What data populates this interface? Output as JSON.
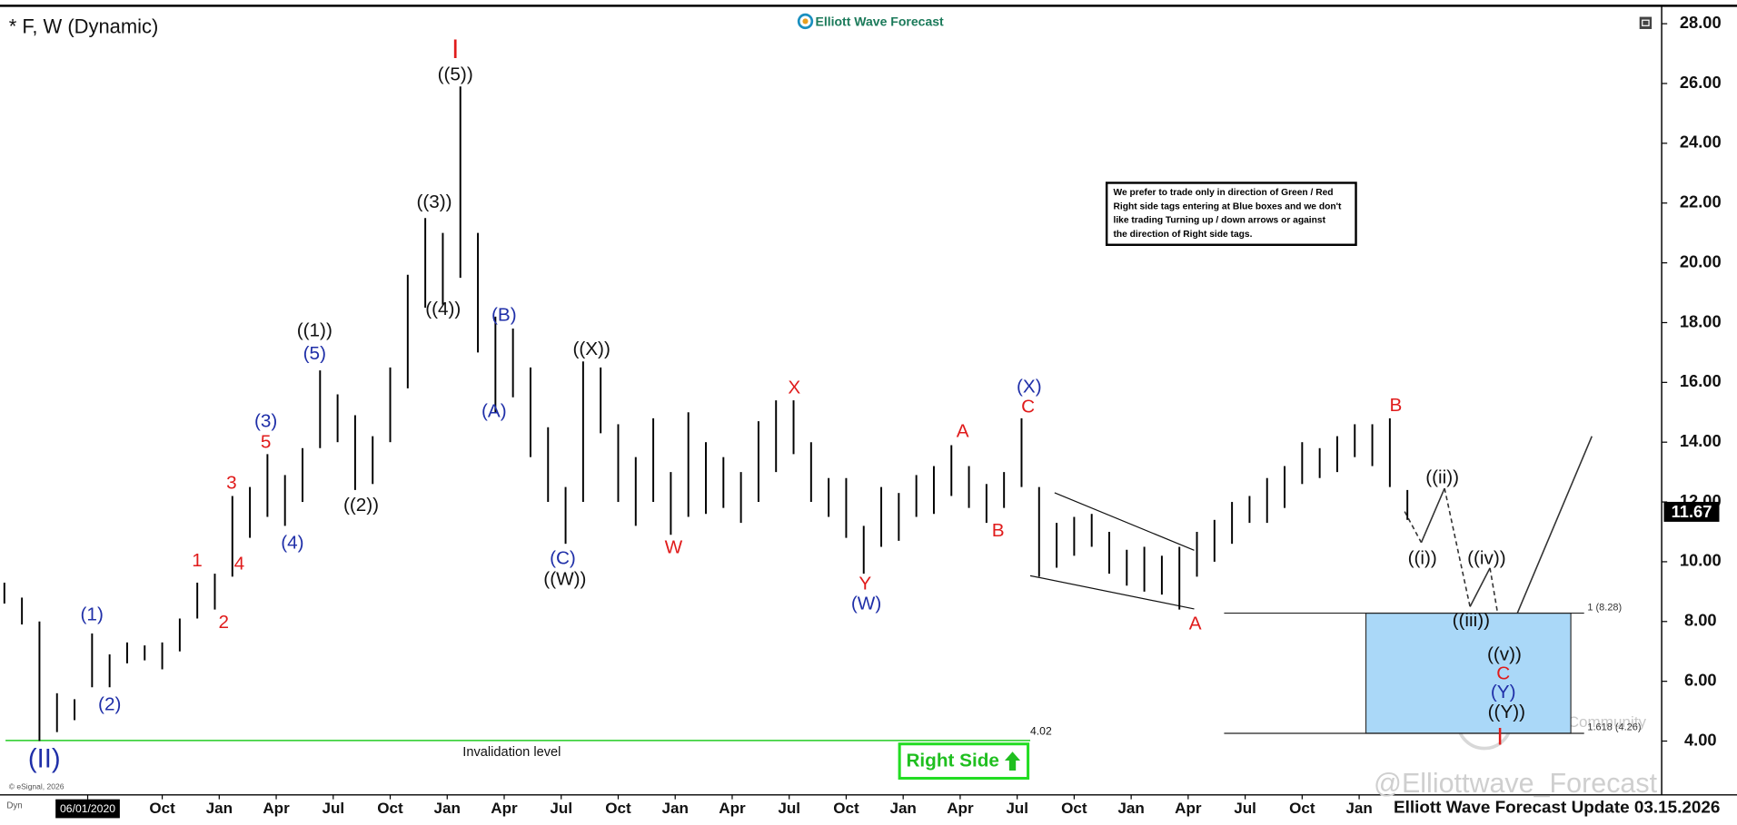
{
  "chart_data": {
    "type": "ohlc",
    "title": "* F, W (Dynamic)",
    "color": "#000000",
    "x": [
      0,
      4,
      8,
      12,
      16,
      20,
      24,
      28,
      32,
      36,
      40,
      44,
      48,
      52,
      56,
      60,
      64,
      68,
      72,
      76,
      80,
      84,
      88,
      92,
      96,
      100,
      104,
      108,
      112,
      116,
      120,
      124,
      128,
      132,
      136,
      140,
      144,
      148,
      152,
      156,
      160,
      164,
      168,
      172,
      176,
      180,
      184,
      188,
      192,
      196,
      200,
      204,
      208,
      212,
      216,
      220,
      224,
      228,
      232,
      236,
      240,
      244,
      248,
      252,
      256,
      260,
      264,
      268,
      272,
      276,
      280,
      284,
      288,
      292,
      296,
      300,
      304,
      308,
      312,
      316,
      320
    ],
    "low": [
      8.6,
      7.9,
      4.0,
      4.3,
      4.7,
      5.8,
      5.8,
      6.6,
      6.7,
      6.4,
      7.0,
      8.1,
      8.4,
      9.5,
      10.8,
      11.5,
      11.2,
      12.0,
      13.8,
      14.0,
      12.4,
      12.6,
      14.0,
      15.8,
      18.5,
      18.6,
      19.5,
      17.0,
      15.0,
      15.5,
      13.5,
      12.0,
      10.6,
      12.0,
      14.3,
      12.0,
      11.2,
      12.0,
      10.9,
      11.5,
      11.6,
      11.8,
      11.3,
      12.0,
      13.0,
      13.6,
      12.0,
      11.5,
      10.8,
      9.6,
      10.5,
      10.7,
      11.5,
      11.6,
      12.2,
      11.8,
      11.3,
      11.8,
      12.5,
      9.5,
      9.8,
      10.2,
      10.5,
      9.6,
      9.2,
      9.0,
      8.9,
      8.4,
      9.5,
      10.0,
      10.6,
      11.3,
      11.3,
      11.8,
      12.6,
      12.8,
      13.0,
      13.5,
      13.2,
      12.5,
      11.4
    ],
    "high": [
      9.3,
      8.8,
      8.0,
      5.6,
      5.4,
      7.6,
      6.9,
      7.3,
      7.2,
      7.3,
      8.1,
      9.3,
      9.6,
      12.2,
      12.5,
      13.6,
      12.9,
      13.8,
      16.4,
      15.6,
      14.9,
      14.2,
      16.5,
      19.6,
      21.5,
      21.0,
      25.9,
      21.0,
      18.2,
      17.8,
      16.5,
      14.5,
      12.5,
      16.7,
      16.5,
      14.6,
      13.5,
      14.8,
      13.0,
      15.0,
      14.0,
      13.5,
      13.0,
      14.7,
      15.4,
      15.4,
      14.0,
      12.8,
      12.8,
      11.2,
      12.5,
      12.3,
      12.9,
      13.2,
      13.9,
      13.2,
      12.6,
      13.0,
      14.8,
      12.5,
      11.3,
      11.5,
      11.6,
      11.0,
      10.4,
      10.5,
      10.2,
      10.5,
      11.0,
      11.4,
      12.0,
      12.2,
      12.8,
      13.2,
      14.0,
      13.8,
      14.2,
      14.6,
      14.6,
      14.8,
      12.4
    ],
    "xlim": [
      -1,
      378
    ],
    "ylim": [
      2.2,
      28.6
    ],
    "yticks": [
      {
        "value": 28,
        "label": "28.00"
      },
      {
        "value": 26,
        "label": "26.00"
      },
      {
        "value": 24,
        "label": "24.00"
      },
      {
        "value": 22,
        "label": "22.00"
      },
      {
        "value": 20,
        "label": "20.00"
      },
      {
        "value": 18,
        "label": "18.00"
      },
      {
        "value": 16,
        "label": "16.00"
      },
      {
        "value": 14,
        "label": "14.00"
      },
      {
        "value": 12,
        "label": "12.00"
      },
      {
        "value": 10,
        "label": "10.00"
      },
      {
        "value": 8,
        "label": "8.00"
      },
      {
        "value": 6,
        "label": "6.00"
      },
      {
        "value": 4,
        "label": "4.00"
      }
    ],
    "xticks": [
      {
        "value": 19,
        "label": "06/01/2020"
      },
      {
        "value": 36,
        "label": "Oct"
      },
      {
        "value": 49,
        "label": "Jan"
      },
      {
        "value": 62,
        "label": "Apr"
      },
      {
        "value": 75,
        "label": "Jul"
      },
      {
        "value": 88,
        "label": "Oct"
      },
      {
        "value": 101,
        "label": "Jan"
      },
      {
        "value": 114,
        "label": "Apr"
      },
      {
        "value": 127,
        "label": "Jul"
      },
      {
        "value": 140,
        "label": "Oct"
      },
      {
        "value": 153,
        "label": "Jan"
      },
      {
        "value": 166,
        "label": "Apr"
      },
      {
        "value": 179,
        "label": "Jul"
      },
      {
        "value": 192,
        "label": "Oct"
      },
      {
        "value": 205,
        "label": "Jan"
      },
      {
        "value": 218,
        "label": "Apr"
      },
      {
        "value": 231,
        "label": "Jul"
      },
      {
        "value": 244,
        "label": "Oct"
      },
      {
        "value": 257,
        "label": "Jan"
      },
      {
        "value": 270,
        "label": "Apr"
      },
      {
        "value": 283,
        "label": "Jul"
      },
      {
        "value": 296,
        "label": "Oct"
      },
      {
        "value": 309,
        "label": "Jan"
      }
    ],
    "last_price": 11.67,
    "invalidation": {
      "value": 4.02,
      "label": "Invalidation level",
      "color": "#22cc22"
    },
    "fib_levels": [
      {
        "value": 8.28,
        "label": "1 (8.28)"
      },
      {
        "value": 4.26,
        "label": "1.618 (4.26)"
      }
    ],
    "target_box_color": "#aad8f8",
    "wave_labels": [
      {
        "text": "I",
        "color": "#e01b1b"
      },
      {
        "text": "((5))",
        "color": "#111111"
      },
      {
        "text": "((3))",
        "color": "#111111"
      },
      {
        "text": "((4))",
        "color": "#111111"
      },
      {
        "text": "((1))",
        "color": "#111111"
      },
      {
        "text": "(5)",
        "color": "#1f2fa8"
      },
      {
        "text": "(3)",
        "color": "#1f2fa8"
      },
      {
        "text": "5",
        "color": "#e01b1b"
      },
      {
        "text": "3",
        "color": "#e01b1b"
      },
      {
        "text": "1",
        "color": "#e01b1b"
      },
      {
        "text": "4",
        "color": "#e01b1b"
      },
      {
        "text": "2",
        "color": "#e01b1b"
      },
      {
        "text": "(1)",
        "color": "#1f2fa8"
      },
      {
        "text": "(2)",
        "color": "#1f2fa8"
      },
      {
        "text": "(4)",
        "color": "#1f2fa8"
      },
      {
        "text": "((2))",
        "color": "#111111"
      },
      {
        "text": "(II)",
        "color": "#1f2fa8"
      },
      {
        "text": "(B)",
        "color": "#1f2fa8"
      },
      {
        "text": "(A)",
        "color": "#1f2fa8"
      },
      {
        "text": "((X))",
        "color": "#111111"
      },
      {
        "text": "(C)",
        "color": "#1f2fa8"
      },
      {
        "text": "((W))",
        "color": "#111111"
      },
      {
        "text": "W",
        "color": "#e01b1b"
      },
      {
        "text": "X",
        "color": "#e01b1b"
      },
      {
        "text": "Y",
        "color": "#e01b1b"
      },
      {
        "text": "(W)",
        "color": "#1f2fa8"
      },
      {
        "text": "A",
        "color": "#e01b1b"
      },
      {
        "text": "B",
        "color": "#e01b1b"
      },
      {
        "text": "C",
        "color": "#e01b1b"
      },
      {
        "text": "(X)",
        "color": "#1f2fa8"
      },
      {
        "text": "A",
        "color": "#e01b1b"
      },
      {
        "text": "B",
        "color": "#e01b1b"
      },
      {
        "text": "((ii))",
        "color": "#111111"
      },
      {
        "text": "((i))",
        "color": "#111111"
      },
      {
        "text": "((iv))",
        "color": "#111111"
      },
      {
        "text": "((iii))",
        "color": "#111111"
      },
      {
        "text": "((v))",
        "color": "#111111"
      },
      {
        "text": "C",
        "color": "#e01b1b"
      },
      {
        "text": "(Y)",
        "color": "#1f2fa8"
      },
      {
        "text": "((Y))",
        "color": "#111111"
      },
      {
        "text": "I",
        "color": "#e01b1b"
      }
    ]
  },
  "header": {
    "logo": "Elliott Wave Forecast"
  },
  "note": [
    "We prefer to trade only in direction of Green / Red",
    "Right side tags entering at Blue boxes and we don't",
    "like trading Turning up / down arrows or against",
    "the direction of Right side tags."
  ],
  "right_side": "Right Side",
  "footer": {
    "source": "© eSignal, 2026",
    "mode": "Dyn",
    "update": "Elliott Wave Forecast Update 03.15.2026",
    "watermark": "@Elliottwave_Forecast",
    "community": "Tiger Community"
  }
}
